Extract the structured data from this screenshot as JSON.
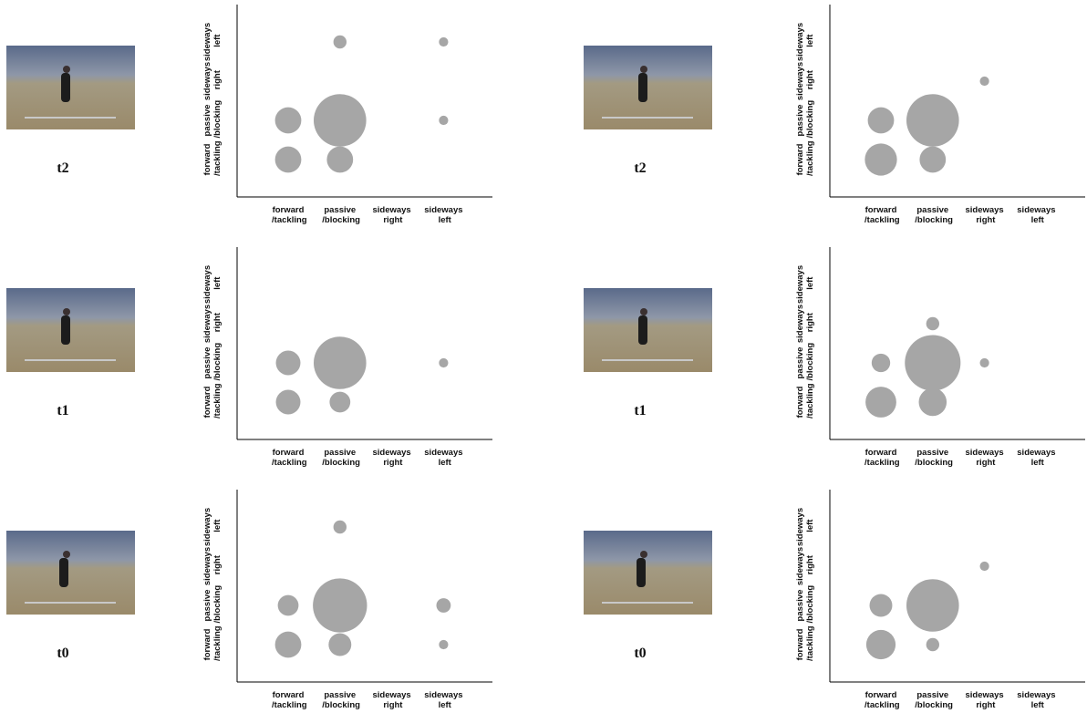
{
  "chart_data": [
    {
      "type": "bubble",
      "title": "t2",
      "x_categories": [
        "forward /tackling",
        "passive /blocking",
        "sideways right",
        "sideways left"
      ],
      "y_categories": [
        "forward /tackling",
        "passive /blocking",
        "sideways right",
        "sideways left"
      ],
      "values": [
        [
          4,
          4,
          null,
          null
        ],
        [
          4,
          16,
          null,
          0.5
        ],
        [
          null,
          null,
          null,
          null
        ],
        [
          null,
          1,
          null,
          0.5
        ]
      ],
      "color": "#a6a6a6"
    },
    {
      "type": "bubble",
      "title": "t2",
      "x_categories": [
        "forward /tackling",
        "passive /blocking",
        "sideways right",
        "sideways left"
      ],
      "y_categories": [
        "forward /tackling",
        "passive /blocking",
        "sideways right",
        "sideways left"
      ],
      "values": [
        [
          6,
          4,
          null,
          null
        ],
        [
          4,
          16,
          null,
          null
        ],
        [
          null,
          null,
          0.5,
          null
        ],
        [
          null,
          null,
          null,
          null
        ]
      ],
      "color": "#a6a6a6"
    },
    {
      "type": "bubble",
      "title": "t1",
      "x_categories": [
        "forward /tackling",
        "passive /blocking",
        "sideways right",
        "sideways left"
      ],
      "y_categories": [
        "forward /tackling",
        "passive /blocking",
        "sideways right",
        "sideways left"
      ],
      "values": [
        [
          3.5,
          2.5,
          null,
          null
        ],
        [
          3.5,
          16,
          null,
          0.5
        ],
        [
          null,
          null,
          null,
          null
        ],
        [
          null,
          null,
          null,
          null
        ]
      ],
      "color": "#a6a6a6"
    },
    {
      "type": "bubble",
      "title": "t1",
      "x_categories": [
        "forward /tackling",
        "passive /blocking",
        "sideways right",
        "sideways left"
      ],
      "y_categories": [
        "forward /tackling",
        "passive /blocking",
        "sideways right",
        "sideways left"
      ],
      "values": [
        [
          5.5,
          4.5,
          null,
          null
        ],
        [
          2,
          18,
          0.5,
          null
        ],
        [
          null,
          1,
          null,
          null
        ],
        [
          null,
          null,
          null,
          null
        ]
      ],
      "color": "#a6a6a6"
    },
    {
      "type": "bubble",
      "title": "t0",
      "x_categories": [
        "forward /tackling",
        "passive /blocking",
        "sideways right",
        "sideways left"
      ],
      "y_categories": [
        "forward /tackling",
        "passive /blocking",
        "sideways right",
        "sideways left"
      ],
      "values": [
        [
          4,
          3,
          null,
          0.5
        ],
        [
          2.5,
          17,
          null,
          1.2
        ],
        [
          null,
          null,
          null,
          null
        ],
        [
          null,
          1,
          null,
          null
        ]
      ],
      "color": "#a6a6a6"
    },
    {
      "type": "bubble",
      "title": "t0",
      "x_categories": [
        "forward /tackling",
        "passive /blocking",
        "sideways right",
        "sideways left"
      ],
      "y_categories": [
        "forward /tackling",
        "passive /blocking",
        "sideways right",
        "sideways left"
      ],
      "values": [
        [
          5,
          1,
          null,
          null
        ],
        [
          3,
          16,
          null,
          null
        ],
        [
          null,
          null,
          0.5,
          null
        ],
        [
          null,
          null,
          null,
          null
        ]
      ],
      "color": "#a6a6a6"
    }
  ]
}
